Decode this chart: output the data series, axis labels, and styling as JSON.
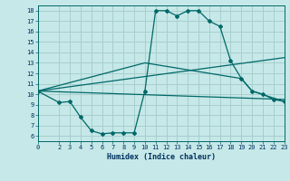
{
  "background_color": "#c6e8e8",
  "grid_color": "#a8cece",
  "line_color": "#006868",
  "xlabel": "Humidex (Indice chaleur)",
  "xlim": [
    0,
    23
  ],
  "ylim": [
    5.5,
    18.5
  ],
  "xticks": [
    0,
    2,
    3,
    4,
    5,
    6,
    7,
    8,
    9,
    10,
    11,
    12,
    13,
    14,
    15,
    16,
    17,
    18,
    19,
    20,
    21,
    22,
    23
  ],
  "yticks": [
    6,
    7,
    8,
    9,
    10,
    11,
    12,
    13,
    14,
    15,
    16,
    17,
    18
  ],
  "line1_x": [
    0,
    2,
    3,
    4,
    5,
    6,
    7,
    8,
    9,
    10,
    11,
    12,
    13,
    14,
    15,
    16,
    17,
    18,
    19,
    20,
    21,
    22,
    23
  ],
  "line1_y": [
    10.3,
    9.2,
    9.3,
    7.8,
    6.5,
    6.2,
    6.3,
    6.3,
    6.3,
    10.3,
    18.0,
    18.0,
    17.5,
    18.0,
    18.0,
    17.0,
    16.5,
    13.2,
    11.5,
    10.3,
    10.0,
    9.5,
    9.3
  ],
  "line2_x": [
    0,
    10,
    19,
    20,
    23
  ],
  "line2_y": [
    10.3,
    13.0,
    11.5,
    10.3,
    9.3
  ],
  "line3_x": [
    0,
    23
  ],
  "line3_y": [
    10.3,
    9.5
  ],
  "line4_x": [
    0,
    23
  ],
  "line4_y": [
    10.3,
    13.5
  ]
}
